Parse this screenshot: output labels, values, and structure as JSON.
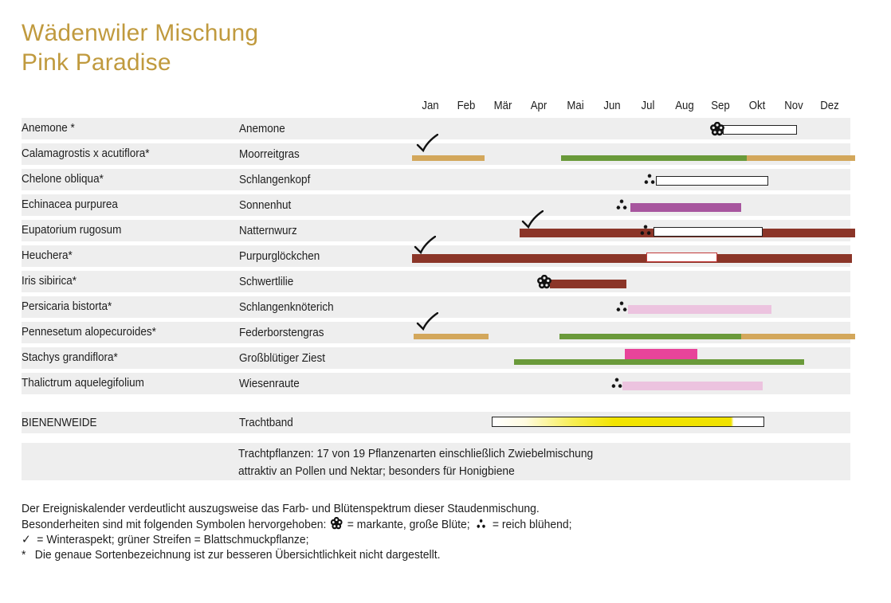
{
  "title_line1": "Wädenwiler Mischung",
  "title_line2": "Pink Paradise",
  "chart_data": {
    "type": "timeline",
    "months": [
      "Jan",
      "Feb",
      "Mär",
      "Apr",
      "Mai",
      "Jun",
      "Jul",
      "Aug",
      "Sep",
      "Okt",
      "Nov",
      "Dez"
    ],
    "colors": {
      "straw": "#d3a75b",
      "leaf": "#6a9a3a",
      "white": "#ffffff",
      "magenta": "#a7559e",
      "rust": "#8b3528",
      "pink_light": "#ecc3df",
      "pink_hot": "#e8449a"
    },
    "rows": [
      {
        "latin": "Anemone *",
        "german": "Anemone",
        "bars": [
          {
            "from": 8.55,
            "to": 10.6,
            "color": "white",
            "outline": true
          }
        ],
        "symbols": [
          {
            "type": "large_flower",
            "at": 8.2
          }
        ]
      },
      {
        "latin": "Calamagrostis x acutiflora*",
        "german": "Moorreitgras",
        "bars": [
          {
            "from": 0.0,
            "to": 2.0,
            "color": "straw"
          },
          {
            "from": 4.1,
            "to": 9.2,
            "color": "leaf"
          },
          {
            "from": 9.2,
            "to": 12.2,
            "color": "straw"
          }
        ],
        "symbols": [
          {
            "type": "winter",
            "at": 0.1
          }
        ]
      },
      {
        "latin": "Chelone obliqua*",
        "german": "Schlangenkopf",
        "bars": [
          {
            "from": 6.7,
            "to": 9.8,
            "color": "white",
            "outline": true
          }
        ],
        "symbols": [
          {
            "type": "rich",
            "at": 6.35
          }
        ]
      },
      {
        "latin": "Echinacea purpurea",
        "german": "Sonnenhut",
        "bars": [
          {
            "from": 6.0,
            "to": 9.05,
            "color": "magenta"
          }
        ],
        "symbols": [
          {
            "type": "rich",
            "at": 5.6
          }
        ]
      },
      {
        "latin": "Eupatorium rugosum",
        "german": "Natternwurz",
        "bars": [
          {
            "from": 2.95,
            "to": 12.2,
            "color": "rust"
          },
          {
            "from": 6.65,
            "to": 9.65,
            "color": "white",
            "outline": true
          }
        ],
        "symbols": [
          {
            "type": "winter",
            "at": 3.0
          },
          {
            "type": "rich",
            "at": 6.25
          }
        ]
      },
      {
        "latin": "Heuchera*",
        "german": "Purpurglöckchen",
        "bars": [
          {
            "from": 0.0,
            "to": 12.1,
            "color": "rust"
          },
          {
            "from": 6.45,
            "to": 8.4,
            "color": "white",
            "outline": true,
            "outline_color": "#c23a3a"
          }
        ],
        "symbols": [
          {
            "type": "winter",
            "at": 0.05
          }
        ]
      },
      {
        "latin": "Iris sibirica*",
        "german": "Schwertlilie",
        "bars": [
          {
            "from": 3.8,
            "to": 5.9,
            "color": "rust"
          }
        ],
        "symbols": [
          {
            "type": "large_flower",
            "at": 3.45
          }
        ]
      },
      {
        "latin": "Persicaria bistorta*",
        "german": "Schlangenknöterich",
        "bars": [
          {
            "from": 5.95,
            "to": 9.9,
            "color": "pink_light"
          }
        ],
        "symbols": [
          {
            "type": "rich",
            "at": 5.6
          }
        ]
      },
      {
        "latin": "Pennesetum alopecuroides*",
        "german": "Federborstengras",
        "bars": [
          {
            "from": 0.05,
            "to": 2.1,
            "color": "straw"
          },
          {
            "from": 4.05,
            "to": 9.05,
            "color": "leaf"
          },
          {
            "from": 9.05,
            "to": 12.2,
            "color": "straw"
          }
        ],
        "symbols": [
          {
            "type": "winter",
            "at": 0.1
          }
        ]
      },
      {
        "latin": "Stachys grandiflora*",
        "german": "Großblütiger Ziest",
        "bars": [
          {
            "from": 5.85,
            "to": 7.85,
            "color": "pink_hot",
            "raised": true
          },
          {
            "from": 2.8,
            "to": 10.8,
            "color": "leaf"
          }
        ],
        "symbols": []
      },
      {
        "latin": "Thalictrum aquelegifolium",
        "german": "Wiesenraute",
        "bars": [
          {
            "from": 5.8,
            "to": 9.65,
            "color": "pink_light"
          }
        ],
        "symbols": [
          {
            "type": "rich",
            "at": 5.45
          }
        ]
      }
    ],
    "bienenweide": {
      "label": "BIENENWEIDE",
      "german": "Trachtband",
      "from": 2.2,
      "to": 9.7
    }
  },
  "info_line1": "Trachtpflanzen: 17 von 19 Pflanzenarten  einschließlich Zwiebelmischung",
  "info_line2": "attraktiv an Pollen und Nektar;  besonders für Honigbiene",
  "legend_line1": "Der Ereigniskalender verdeutlicht auszugsweise das Farb- und Blütenspektrum dieser Staudenmischung.",
  "legend_line2_a": "Besonderheiten sind mit folgenden Symbolen hervorgehoben:",
  "legend_line2_b": "= markante, große Blüte;",
  "legend_line2_c": "= reich blühend;",
  "legend_line3": "= Winteraspekt; grüner Streifen = Blattschmuckpflanze;",
  "legend_line4": "Die genaue Sortenbezeichnung ist zur besseren Übersichtlichkeit nicht dargestellt.",
  "symbol_check": "✓",
  "symbol_asterisk": "*"
}
